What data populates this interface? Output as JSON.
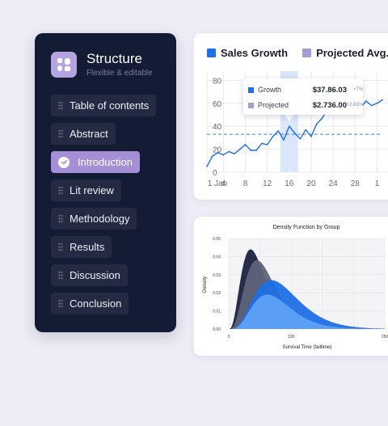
{
  "sidebar": {
    "title": "Structure",
    "subtitle": "Flexible & editable",
    "items": [
      {
        "label": "Table of contents",
        "active": false
      },
      {
        "label": "Abstract",
        "active": false
      },
      {
        "label": "Introduction",
        "active": true
      },
      {
        "label": "Lit review",
        "active": false
      },
      {
        "label": "Methodology",
        "active": false
      },
      {
        "label": "Results",
        "active": false
      },
      {
        "label": "Discussion",
        "active": false
      },
      {
        "label": "Conclusion",
        "active": false
      }
    ]
  },
  "colors": {
    "background": "#eeecf6",
    "sidebar": "#141b34",
    "accent": "#a58fd6",
    "blue": "#1f6fe5",
    "projected": "#a99bd3"
  },
  "chart_data": [
    {
      "type": "line",
      "legend": [
        "Sales Growth",
        "Projected Avg."
      ],
      "x_ticks": [
        "1 Jan",
        "4",
        "8",
        "12",
        "16",
        "20",
        "24",
        "28",
        "1"
      ],
      "y_ticks": [
        "0",
        "20",
        "40",
        "60",
        "80"
      ],
      "ylim": [
        0,
        88
      ],
      "grid": true,
      "x": [
        1,
        2,
        3,
        4,
        5,
        6,
        7,
        8,
        9,
        10,
        11,
        12,
        13,
        14,
        15,
        16,
        17,
        18,
        19,
        20,
        21,
        22,
        23,
        24,
        25,
        26,
        27,
        28,
        29,
        30,
        31,
        32,
        33
      ],
      "series": [
        {
          "name": "Sales Growth",
          "values": [
            5,
            14,
            17,
            15,
            18,
            16,
            20,
            24,
            19,
            19,
            25,
            24,
            31,
            36,
            28,
            40,
            34,
            29,
            37,
            31,
            42,
            47,
            55,
            53,
            58,
            60,
            56,
            53,
            56,
            62,
            58,
            60,
            63
          ]
        },
        {
          "name": "Projected Avg.",
          "values": [
            33,
            33,
            33,
            33,
            33,
            33,
            33,
            33,
            33,
            33,
            33,
            33,
            33,
            33,
            33,
            33,
            33,
            33,
            33,
            33,
            33,
            33,
            33,
            33,
            33,
            33,
            33,
            33,
            33,
            33,
            33,
            33,
            33
          ]
        }
      ],
      "highlight_x": 16,
      "tooltip": {
        "rows": [
          {
            "label": "Growth",
            "value": "$37.86.03",
            "change": "+7%"
          },
          {
            "label": "Projected",
            "value": "$2.736.00",
            "change": "+2.83%"
          }
        ]
      }
    },
    {
      "type": "area",
      "title": "Density Function by Group",
      "xlabel": "Survival Time (failtime)",
      "ylabel": "Density",
      "x_ticks": [
        "0",
        "100",
        "250"
      ],
      "y_ticks": [
        "0.00",
        "0.01",
        "0.02",
        "0.03",
        "0.04",
        "0.05"
      ],
      "xlim": [
        0,
        250
      ],
      "ylim": [
        0,
        0.05
      ],
      "series": [
        {
          "peak_x": 35,
          "peak_y": 0.044,
          "color": "#1a2140"
        },
        {
          "peak_x": 45,
          "peak_y": 0.038,
          "color": "#5e6378"
        },
        {
          "peak_x": 68,
          "peak_y": 0.027,
          "color": "#1f6fe5"
        },
        {
          "peak_x": 62,
          "peak_y": 0.019,
          "color": "#5fa0f5"
        }
      ]
    }
  ]
}
